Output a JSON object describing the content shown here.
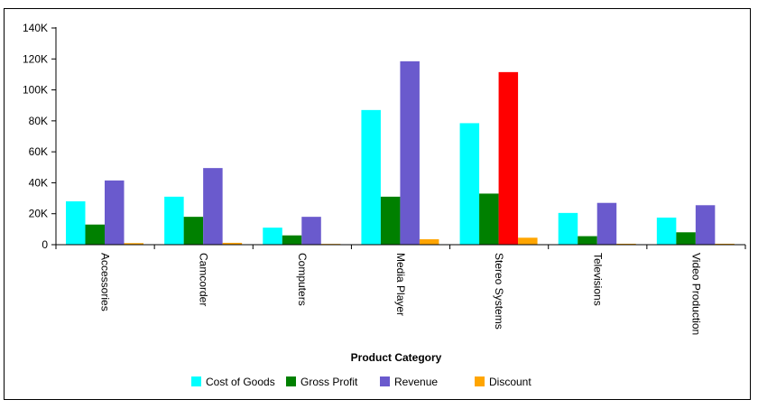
{
  "chart_data": {
    "type": "bar",
    "title": "",
    "xlabel": "Product Category",
    "ylabel": "",
    "ylim": [
      0,
      140000
    ],
    "yticks": [
      0,
      20000,
      40000,
      60000,
      80000,
      100000,
      120000,
      140000
    ],
    "ytick_labels": [
      "0",
      "20K",
      "40K",
      "60K",
      "80K",
      "100K",
      "120K",
      "140K"
    ],
    "categories": [
      "Accessories",
      "Camcorder",
      "Computers",
      "Media Player",
      "Stereo Systems",
      "Televisions",
      "Video Production"
    ],
    "series": [
      {
        "name": "Cost of Goods",
        "color": "#00FFFF",
        "values": [
          28000,
          31000,
          11000,
          87000,
          78500,
          20500,
          17500
        ]
      },
      {
        "name": "Gross Profit",
        "color": "#008000",
        "values": [
          13000,
          18000,
          6000,
          31000,
          33000,
          5500,
          8000
        ]
      },
      {
        "name": "Revenue",
        "color": "#6A5ACD",
        "values": [
          41500,
          49500,
          18000,
          118500,
          111500,
          27000,
          25500
        ]
      },
      {
        "name": "Discount",
        "color": "#FFA500",
        "values": [
          1000,
          1200,
          500,
          3500,
          4500,
          600,
          600
        ]
      }
    ],
    "highlights": [
      {
        "series": "Revenue",
        "category": "Stereo Systems",
        "color": "#FF0000"
      }
    ],
    "grid": false,
    "legend_position": "bottom"
  }
}
